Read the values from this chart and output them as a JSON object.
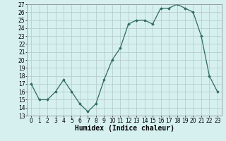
{
  "x": [
    0,
    1,
    2,
    3,
    4,
    5,
    6,
    7,
    8,
    9,
    10,
    11,
    12,
    13,
    14,
    15,
    16,
    17,
    18,
    19,
    20,
    21,
    22,
    23
  ],
  "y": [
    17,
    15,
    15,
    16,
    17.5,
    16,
    14.5,
    13.5,
    14.5,
    17.5,
    20,
    21.5,
    24.5,
    25,
    25,
    24.5,
    26.5,
    26.5,
    27,
    26.5,
    26,
    23,
    18,
    16
  ],
  "xlabel": "Humidex (Indice chaleur)",
  "ylim": [
    13,
    27
  ],
  "xlim": [
    -0.5,
    23.5
  ],
  "yticks": [
    13,
    14,
    15,
    16,
    17,
    18,
    19,
    20,
    21,
    22,
    23,
    24,
    25,
    26,
    27
  ],
  "xticks": [
    0,
    1,
    2,
    3,
    4,
    5,
    6,
    7,
    8,
    9,
    10,
    11,
    12,
    13,
    14,
    15,
    16,
    17,
    18,
    19,
    20,
    21,
    22,
    23
  ],
  "line_color": "#2F6B5E",
  "marker": "D",
  "marker_size": 1.8,
  "bg_color": "#D6EFEF",
  "grid_color": "#B0C8C8",
  "xlabel_fontsize": 7,
  "tick_fontsize": 5.5,
  "linewidth": 0.9
}
